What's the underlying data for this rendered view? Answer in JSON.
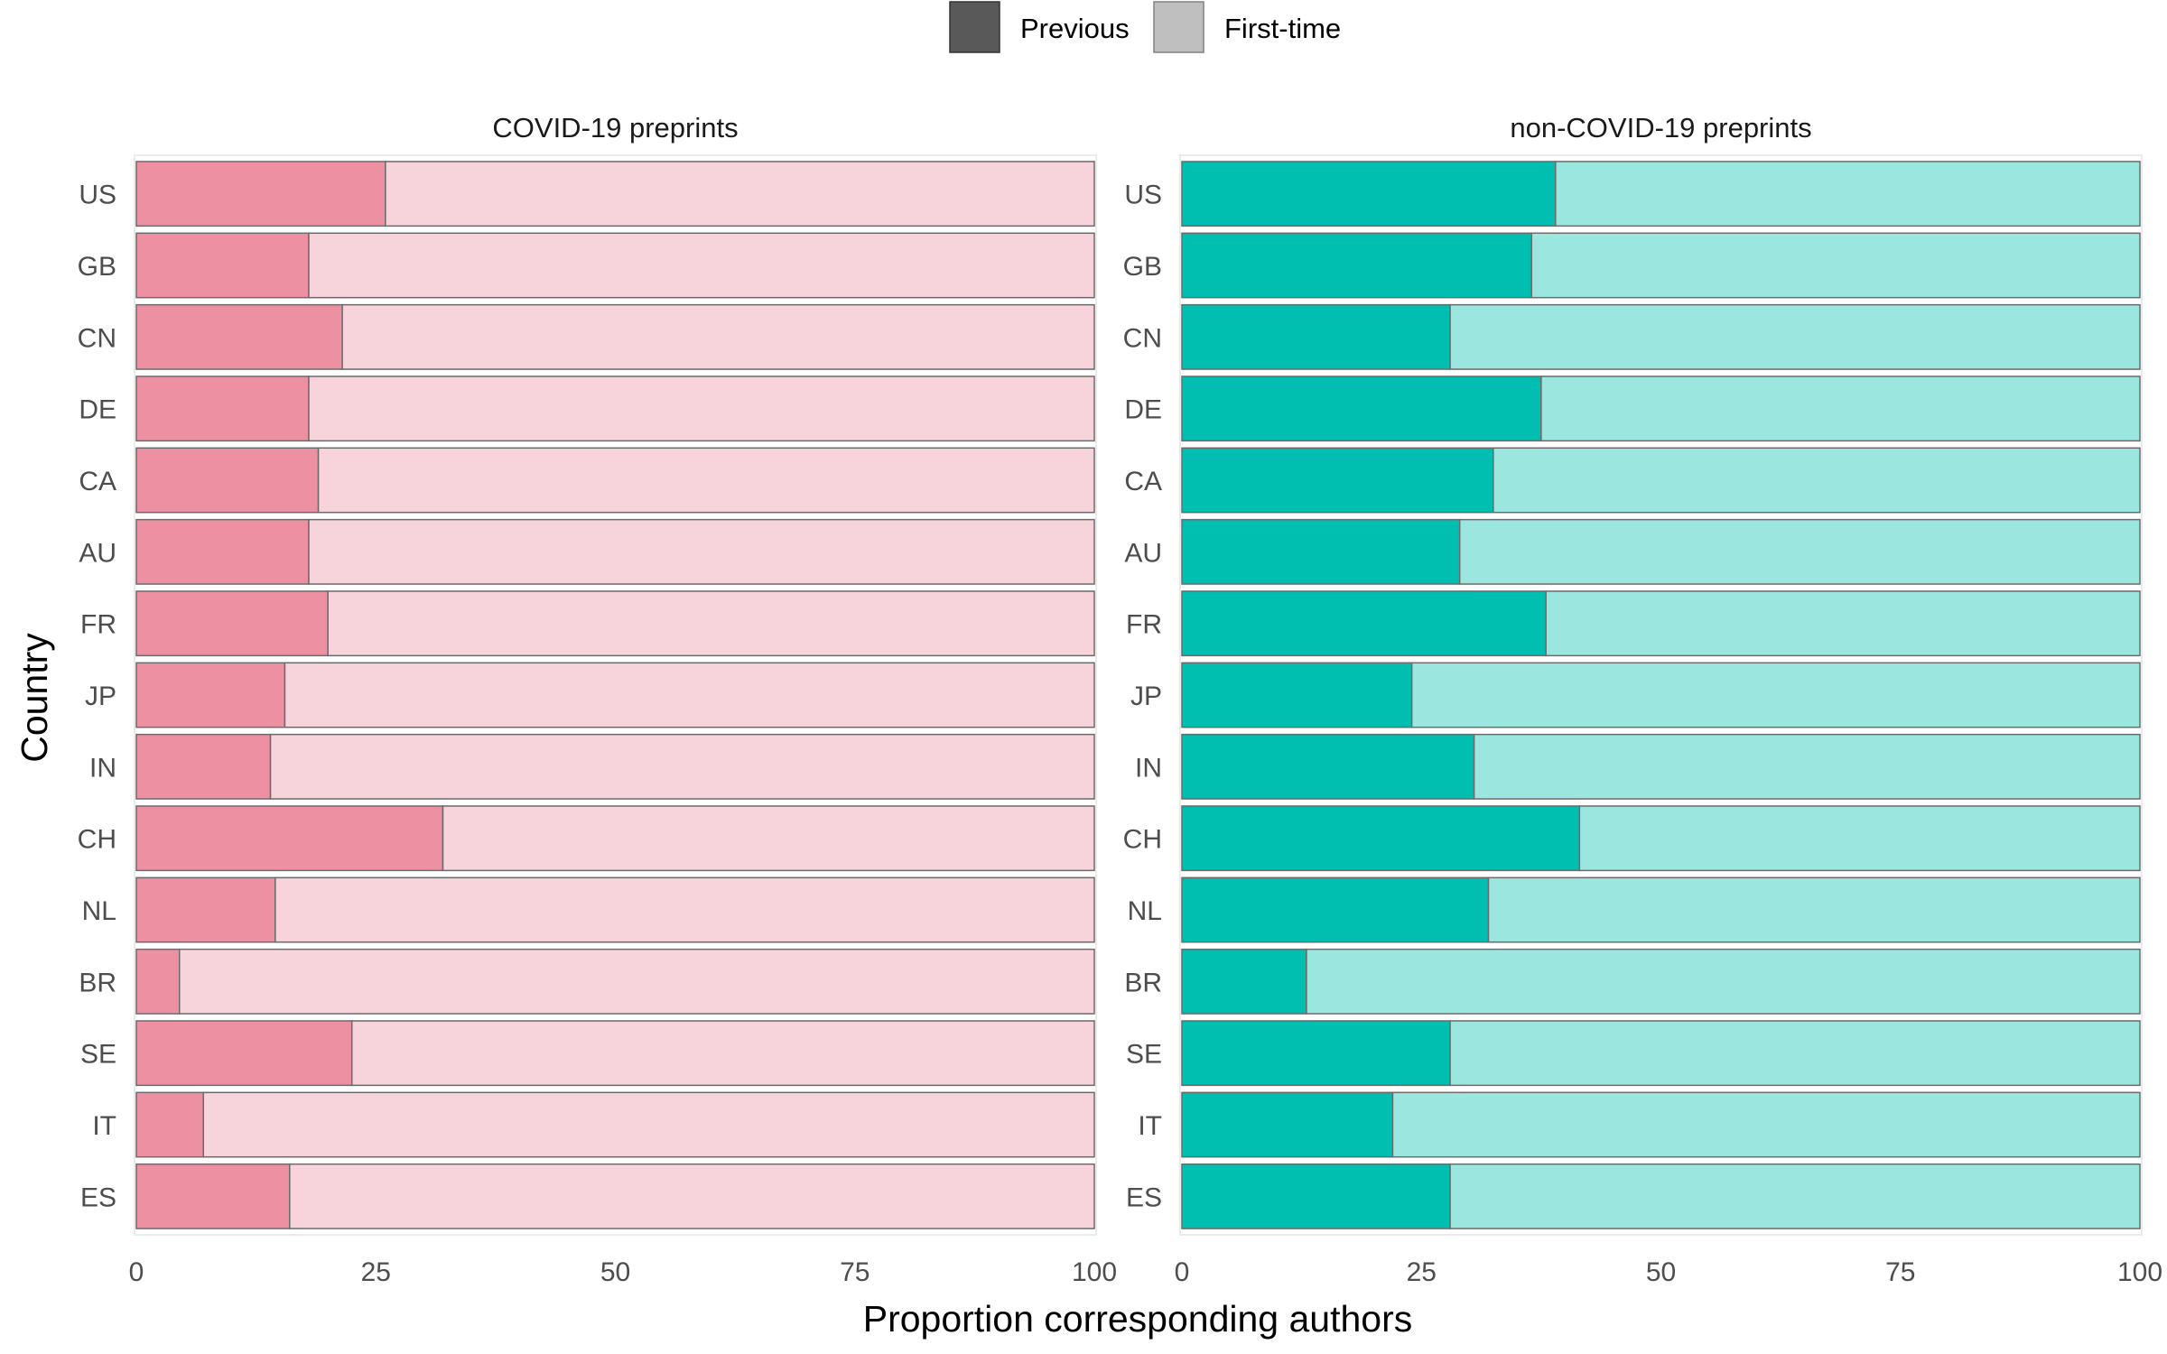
{
  "legend": {
    "items": [
      {
        "label": "Previous",
        "swatch_color": "#595959"
      },
      {
        "label": "First-time",
        "swatch_color": "#bfbfbf"
      }
    ]
  },
  "axes": {
    "xlabel": "Proportion corresponding authors",
    "ylabel": "Country"
  },
  "chart_data": [
    {
      "type": "bar",
      "orientation": "horizontal",
      "stacked": true,
      "title": "COVID-19 preprints",
      "categories": [
        "US",
        "GB",
        "CN",
        "DE",
        "CA",
        "AU",
        "FR",
        "JP",
        "IN",
        "CH",
        "NL",
        "BR",
        "SE",
        "IT",
        "ES"
      ],
      "series": [
        {
          "name": "Previous",
          "color": "#ec90a2",
          "values": [
            26,
            18,
            21.5,
            18,
            19,
            18,
            20,
            15.5,
            14,
            32,
            14.5,
            4.5,
            22.5,
            7,
            16
          ]
        },
        {
          "name": "First-time",
          "color": "#f7d3db",
          "values": [
            74,
            82,
            78.5,
            82,
            81,
            82,
            80,
            84.5,
            86,
            68,
            85.5,
            95.5,
            77.5,
            93,
            84
          ]
        }
      ],
      "xlim": [
        0,
        100
      ],
      "xticks": [
        0,
        25,
        50,
        75,
        100
      ],
      "tick_labels": [
        "0",
        "25",
        "50",
        "75",
        "100"
      ]
    },
    {
      "type": "bar",
      "orientation": "horizontal",
      "stacked": true,
      "title": "non-COVID-19 preprints",
      "categories": [
        "US",
        "GB",
        "CN",
        "DE",
        "CA",
        "AU",
        "FR",
        "JP",
        "IN",
        "CH",
        "NL",
        "BR",
        "SE",
        "IT",
        "ES"
      ],
      "series": [
        {
          "name": "Previous",
          "color": "#00bfb0",
          "values": [
            39,
            36.5,
            28,
            37.5,
            32.5,
            29,
            38,
            24,
            30.5,
            41.5,
            32,
            13,
            28,
            22,
            28
          ]
        },
        {
          "name": "First-time",
          "color": "#9be6df",
          "values": [
            61,
            63.5,
            72,
            62.5,
            67.5,
            71,
            62,
            76,
            69.5,
            58.5,
            68,
            87,
            72,
            78,
            72
          ]
        }
      ],
      "xlim": [
        0,
        100
      ],
      "xticks": [
        0,
        25,
        50,
        75,
        100
      ],
      "tick_labels": [
        "0",
        "25",
        "50",
        "75",
        "100"
      ]
    }
  ]
}
